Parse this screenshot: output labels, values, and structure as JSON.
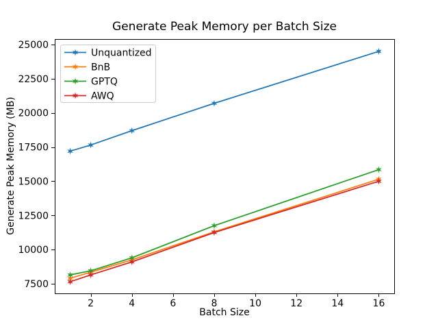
{
  "chart_data": {
    "type": "line",
    "title": "Generate Peak Memory per Batch Size",
    "xlabel": "Batch Size",
    "ylabel": "Generate Peak Memory (MB)",
    "x": [
      1,
      2,
      4,
      8,
      16
    ],
    "series": [
      {
        "name": "Unquantized",
        "color": "#1f77b4",
        "marker": "star",
        "values": [
          17200,
          17650,
          18700,
          20700,
          24500
        ]
      },
      {
        "name": "BnB",
        "color": "#ff7f0e",
        "marker": "star",
        "values": [
          7900,
          8350,
          9250,
          11300,
          15150
        ]
      },
      {
        "name": "GPTQ",
        "color": "#2ca02c",
        "marker": "star",
        "values": [
          8150,
          8450,
          9400,
          11750,
          15850
        ]
      },
      {
        "name": "AWQ",
        "color": "#d62728",
        "marker": "star",
        "values": [
          7650,
          8150,
          9100,
          11250,
          15000
        ]
      }
    ],
    "xlim": [
      0.25,
      16.75
    ],
    "ylim": [
      6800,
      25400
    ],
    "xticks": [
      2,
      4,
      6,
      8,
      10,
      12,
      14,
      16
    ],
    "yticks": [
      7500,
      10000,
      12500,
      15000,
      17500,
      20000,
      22500,
      25000
    ],
    "grid": false,
    "legend": {
      "position": "upper-left",
      "items": [
        "Unquantized",
        "BnB",
        "GPTQ",
        "AWQ"
      ]
    },
    "colors": {
      "frame": "#000000",
      "text": "#000000",
      "legend_border": "#cccccc",
      "background": "#ffffff"
    }
  }
}
